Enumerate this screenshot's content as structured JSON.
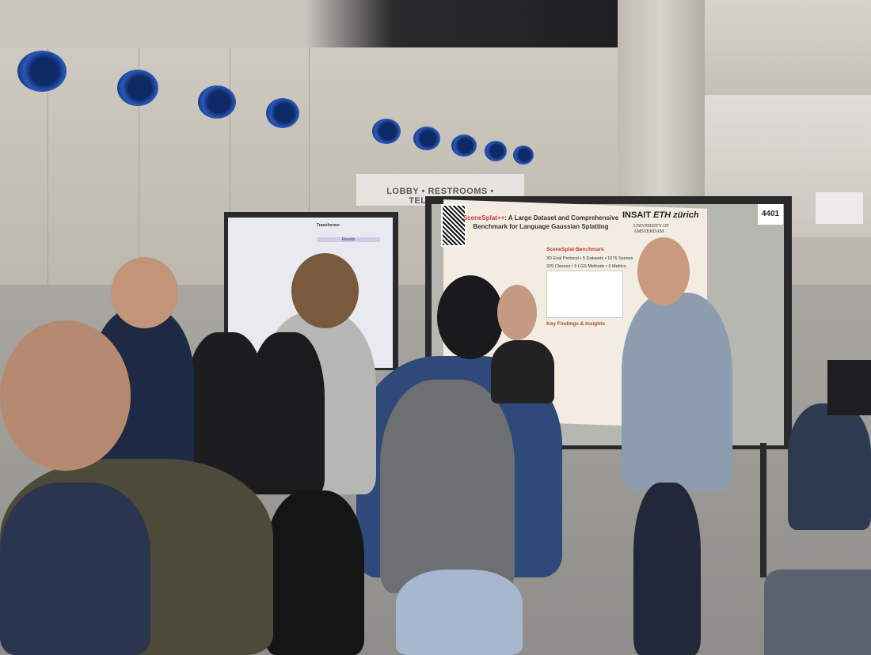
{
  "scene": {
    "wall_sign": "LOBBY • RESTROOMS • TELEPHONES",
    "booth_number": "4401",
    "poster": {
      "title_accent": "SceneSplat++",
      "title_rest": ": A Large Dataset and Comprehensive Benchmark for Language Gaussian Splatting",
      "logo_insait": "INSAIT",
      "logo_eth": "ETH zürich",
      "university": "UNIVERSITY OF AMSTERDAM",
      "section_benchmark": "SceneSplat-Benchmark",
      "stats_line1": "3D Eval Protocol • 5 Datasets • 1076 Scenes",
      "stats_line2": "325 Classes • 9 LGS Methods • 6 Metrics",
      "section_findings": "Key Findings & Insights"
    },
    "left_poster": {
      "title": "Transformer",
      "results_label": "Results"
    },
    "colors": {
      "duct_blue": "#1b3f8f",
      "poster_accent": "#d23b3b"
    }
  }
}
